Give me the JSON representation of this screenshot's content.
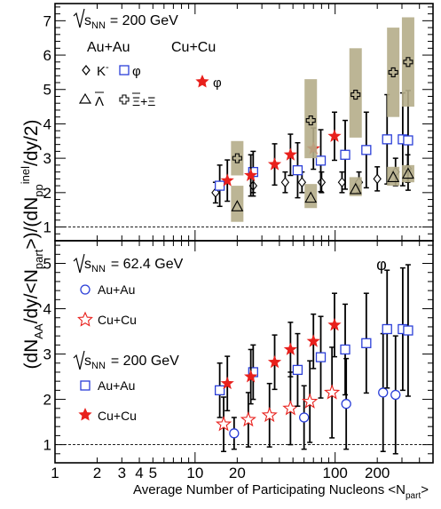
{
  "chart_data": {
    "type": "scatter",
    "log_x": true,
    "xlim": [
      1,
      500
    ],
    "x_ticks": [
      {
        "v": 1,
        "label": "1"
      },
      {
        "v": 2,
        "label": "2"
      },
      {
        "v": 3,
        "label": "3"
      },
      {
        "v": 4,
        "label": "4"
      },
      {
        "v": 5,
        "label": "5"
      },
      {
        "v": 10,
        "label": "10"
      },
      {
        "v": 20,
        "label": "20"
      },
      {
        "v": 100,
        "label": "100"
      },
      {
        "v": 200,
        "label": "200"
      }
    ],
    "xlabel": "Average Number of Participating Nucleons <N",
    "xlabel_sub": "part",
    "xlabel_close": ">",
    "ylabel_parts": [
      "(dN",
      "AA",
      "/dy/<N",
      "part",
      ">)/(dN",
      "pp",
      "inel",
      "/dy/2)"
    ],
    "reference_line_y": 1,
    "panels": [
      {
        "name": "top",
        "ylim": [
          0.6,
          7.5
        ],
        "y_ticks": [
          1,
          2,
          3,
          4,
          5,
          6,
          7
        ],
        "energy_label": "s",
        "energy_sub": "NN",
        "energy_value": "= 200 GeV",
        "group_labels": [
          "Au+Au",
          "Cu+Cu"
        ],
        "legend": [
          {
            "marker": "diamond",
            "label": "K",
            "sup": "-"
          },
          {
            "marker": "square",
            "label": "φ"
          },
          {
            "marker": "triangle",
            "label": "Λ"
          },
          {
            "marker": "cross",
            "label": "Ξ+Ξ"
          },
          {
            "marker": "star-filled",
            "label": "φ"
          }
        ],
        "series": [
          {
            "name": "Au+Au K-",
            "marker": "diamond",
            "color": "#000000",
            "points": [
              [
                14,
                2.0
              ],
              [
                26,
                2.2
              ],
              [
                44,
                2.3
              ],
              [
                58,
                2.3
              ],
              [
                80,
                2.3
              ],
              [
                112,
                2.3
              ],
              [
                148,
                2.3
              ],
              [
                200,
                2.4
              ],
              [
                270,
                2.6
              ],
              [
                330,
                2.7
              ]
            ],
            "err": [
              0.3,
              0.3,
              0.3,
              0.3,
              0.3,
              0.3,
              0.3,
              0.35,
              0.4,
              0.4
            ]
          },
          {
            "name": "Au+Au φ",
            "marker": "square",
            "color": "#2b3fd8",
            "points": [
              [
                15,
                2.2
              ],
              [
                26,
                2.6
              ],
              [
                54,
                2.65
              ],
              [
                79,
                2.93
              ],
              [
                118,
                3.1
              ],
              [
                167,
                3.24
              ],
              [
                235,
                3.55
              ],
              [
                304,
                3.55
              ],
              [
                332,
                3.52
              ]
            ],
            "err": [
              0.6,
              0.6,
              0.8,
              0.9,
              1.0,
              1.1,
              1.3,
              1.35,
              1.45
            ]
          },
          {
            "name": "Cu+Cu φ",
            "marker": "star-filled",
            "color": "#e8201c",
            "points": [
              [
                17,
                2.35
              ],
              [
                25,
                2.5
              ],
              [
                37,
                2.82
              ],
              [
                48,
                3.1
              ],
              [
                70,
                3.28
              ],
              [
                99,
                3.64
              ]
            ],
            "err": [
              0.6,
              0.6,
              0.6,
              0.6,
              0.6,
              0.7
            ]
          },
          {
            "name": "Au+Au Λ",
            "marker": "triangle",
            "color": "#000000",
            "points": [
              [
                20,
                1.6
              ],
              [
                67,
                1.85
              ],
              [
                140,
                2.1
              ],
              [
                260,
                2.45
              ],
              [
                332,
                2.55
              ]
            ],
            "box": [
              [
                1.15,
                2.2
              ],
              [
                1.55,
                2.25
              ],
              [
                1.9,
                2.45
              ],
              [
                2.2,
                2.75
              ],
              [
                2.3,
                2.8
              ]
            ]
          },
          {
            "name": "Au+Au Ξ+Ξ",
            "marker": "cross",
            "color": "#000000",
            "points": [
              [
                20,
                3.0
              ],
              [
                67,
                4.1
              ],
              [
                140,
                4.85
              ],
              [
                260,
                5.5
              ],
              [
                332,
                5.8
              ]
            ],
            "box": [
              [
                2.5,
                3.5
              ],
              [
                3.0,
                5.3
              ],
              [
                3.6,
                6.2
              ],
              [
                4.2,
                6.8
              ],
              [
                4.5,
                7.1
              ]
            ]
          }
        ]
      },
      {
        "name": "bottom",
        "ylim": [
          0.6,
          5.5
        ],
        "y_ticks": [
          1,
          2,
          3,
          4,
          5
        ],
        "phi_label": "φ",
        "energy_blocks": [
          {
            "label": "s",
            "sub": "NN",
            "value": "= 62.4 GeV",
            "legend": [
              {
                "marker": "circle",
                "label": "Au+Au"
              },
              {
                "marker": "star-open",
                "label": "Cu+Cu"
              }
            ]
          },
          {
            "label": "s",
            "sub": "NN",
            "value": "= 200 GeV",
            "legend": [
              {
                "marker": "square",
                "label": "Au+Au"
              },
              {
                "marker": "star-filled",
                "label": "Cu+Cu"
              }
            ]
          }
        ],
        "series": [
          {
            "name": "62.4 GeV Au+Au",
            "marker": "circle",
            "color": "#2b3fd8",
            "points": [
              [
                19,
                1.25
              ],
              [
                60,
                1.6
              ],
              [
                120,
                1.9
              ],
              [
                220,
                2.15
              ],
              [
                270,
                2.1
              ]
            ],
            "err": [
              0.35,
              0.7,
              1.0,
              1.3,
              1.3
            ]
          },
          {
            "name": "62.4 GeV Cu+Cu",
            "marker": "star-open",
            "color": "#e8201c",
            "points": [
              [
                16,
                1.45
              ],
              [
                24,
                1.55
              ],
              [
                34,
                1.65
              ],
              [
                48,
                1.8
              ],
              [
                66,
                1.95
              ],
              [
                95,
                2.15
              ]
            ],
            "err": [
              0.6,
              0.6,
              0.7,
              0.8,
              0.9,
              1.0
            ]
          },
          {
            "name": "200 GeV Au+Au",
            "marker": "square",
            "color": "#2b3fd8",
            "points": [
              [
                15,
                2.2
              ],
              [
                26,
                2.6
              ],
              [
                54,
                2.65
              ],
              [
                79,
                2.93
              ],
              [
                118,
                3.1
              ],
              [
                167,
                3.24
              ],
              [
                235,
                3.55
              ],
              [
                304,
                3.55
              ],
              [
                332,
                3.52
              ]
            ],
            "err": [
              0.6,
              0.6,
              0.8,
              0.9,
              1.0,
              1.1,
              1.3,
              1.35,
              1.45
            ]
          },
          {
            "name": "200 GeV Cu+Cu",
            "marker": "star-filled",
            "color": "#e8201c",
            "points": [
              [
                17,
                2.35
              ],
              [
                25,
                2.5
              ],
              [
                37,
                2.82
              ],
              [
                48,
                3.1
              ],
              [
                70,
                3.28
              ],
              [
                99,
                3.64
              ]
            ],
            "err": [
              0.6,
              0.6,
              0.6,
              0.6,
              0.6,
              0.7
            ]
          }
        ]
      }
    ],
    "box_color": "#b5ad8a"
  }
}
